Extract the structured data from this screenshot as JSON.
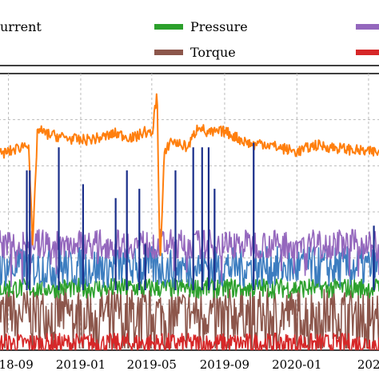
{
  "chart_data": {
    "type": "line",
    "title": "",
    "xlabel": "",
    "ylabel": "",
    "grid": true,
    "legend_position": "top",
    "x_tick_labels": [
      "2018-09",
      "2019-01",
      "2019-05",
      "2019-09",
      "2020-01",
      "202"
    ],
    "x_ticks": [
      "2018-09-01",
      "2019-01-01",
      "2019-05-01",
      "2019-09-01",
      "2020-01-01",
      "2020-05-01"
    ],
    "x_range": [
      "2018-08-15",
      "2020-05-20"
    ],
    "y_range": [
      0,
      6
    ],
    "legend": [
      {
        "label": "urrent",
        "color": "#1a2e8a"
      },
      {
        "label": "Pressure",
        "color": "#2ca02c"
      },
      {
        "label": "",
        "color": "#9467bd"
      },
      {
        "label": "",
        "color": "#2ca02c"
      },
      {
        "label": "Torque",
        "color": "#8c564b"
      },
      {
        "label": "",
        "color": "#d62728"
      }
    ],
    "series": [
      {
        "color": "#ff7f0e",
        "x": [
          "2018-08-15",
          "2018-09-01",
          "2018-09-20",
          "2018-10-05",
          "2018-10-12",
          "2018-10-20",
          "2018-11-01",
          "2018-11-20",
          "2018-12-10",
          "2019-01-01",
          "2019-02-01",
          "2019-03-01",
          "2019-04-01",
          "2019-04-20",
          "2019-05-01",
          "2019-05-10",
          "2019-05-15",
          "2019-05-22",
          "2019-06-01",
          "2019-07-01",
          "2019-07-20",
          "2019-08-01",
          "2019-09-01",
          "2019-10-01",
          "2019-10-20",
          "2019-11-01",
          "2019-12-01",
          "2020-01-01",
          "2020-02-01",
          "2020-03-01",
          "2020-04-01",
          "2020-05-01",
          "2020-05-20"
        ],
        "y": [
          4.25,
          4.3,
          4.4,
          4.5,
          2.2,
          4.8,
          4.7,
          4.65,
          4.6,
          4.55,
          4.6,
          4.7,
          4.6,
          4.75,
          4.65,
          5.6,
          1.8,
          4.2,
          4.55,
          4.4,
          4.9,
          4.7,
          4.75,
          4.55,
          4.45,
          4.5,
          4.4,
          4.3,
          4.45,
          4.4,
          4.35,
          4.3,
          4.3
        ]
      },
      {
        "color": "#9467bd",
        "x": [
          "2018-08-15",
          "2020-05-20"
        ],
        "y": [
          2.3,
          2.3
        ]
      },
      {
        "color": "#3c7dc0",
        "x": [
          "2018-08-15",
          "2020-05-20"
        ],
        "y": [
          1.8,
          1.8
        ]
      },
      {
        "color": "#2ca02c",
        "x": [
          "2018-08-15",
          "2020-05-20"
        ],
        "y": [
          1.35,
          1.35
        ]
      },
      {
        "color": "#8c564b",
        "x": [
          "2018-08-15",
          "2020-05-20"
        ],
        "y": [
          0.8,
          0.8
        ]
      },
      {
        "color": "#d62728",
        "x": [
          "2018-08-15",
          "2020-05-20"
        ],
        "y": [
          0.15,
          0.15
        ]
      },
      {
        "color": "#1a2e8a",
        "type": "spikes",
        "x": [
          "2018-10-02",
          "2018-10-07",
          "2018-11-25",
          "2019-01-05",
          "2019-03-01",
          "2019-03-20",
          "2019-04-10",
          "2019-04-20",
          "2019-06-10",
          "2019-07-10",
          "2019-07-25",
          "2019-08-05",
          "2019-08-15",
          "2019-10-20",
          "2020-05-10"
        ],
        "y": [
          3.9,
          3.9,
          4.4,
          3.6,
          3.3,
          3.9,
          3.5,
          2.3,
          3.9,
          4.4,
          4.4,
          4.4,
          3.5,
          4.5,
          2.7
        ]
      }
    ]
  }
}
